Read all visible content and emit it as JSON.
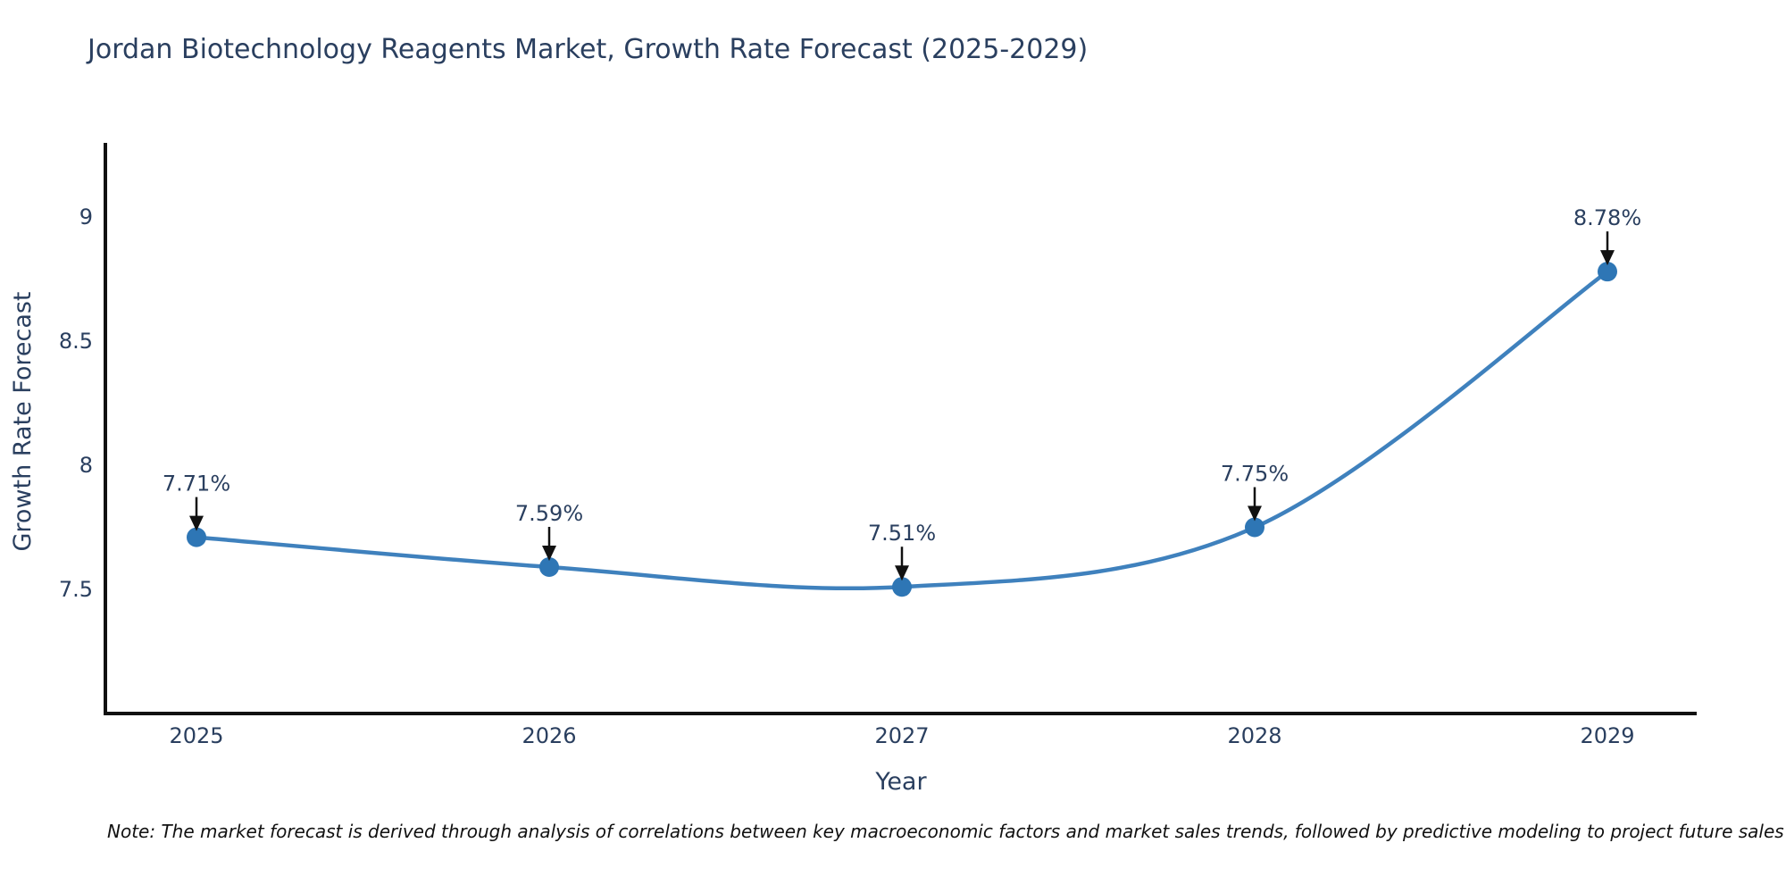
{
  "title": "Jordan Biotechnology Reagents Market, Growth Rate Forecast (2025-2029)",
  "note": "Note: The market forecast is derived through analysis of correlations between key macroeconomic factors and market sales trends, followed by predictive modeling to project future sales",
  "chart_data": {
    "type": "line",
    "title": "Jordan Biotechnology Reagents Market, Growth Rate Forecast (2025-2029)",
    "xlabel": "Year",
    "ylabel": "Growth Rate Forecast",
    "x": [
      2025,
      2026,
      2027,
      2028,
      2029
    ],
    "values": [
      7.71,
      7.59,
      7.51,
      7.75,
      8.78
    ],
    "point_labels": [
      "7.71%",
      "7.59%",
      "7.51%",
      "7.75%",
      "8.78%"
    ],
    "xtick_labels": [
      "2025",
      "2026",
      "2027",
      "2028",
      "2029"
    ],
    "ytick_values": [
      7.5,
      8,
      8.5,
      9
    ],
    "ytick_labels": [
      "7.5",
      "8",
      "8.5",
      "9"
    ],
    "ylim": [
      7.0,
      9.3
    ],
    "xlim": [
      2024.74,
      2029.25
    ],
    "grid": false,
    "legend_position": "none",
    "line_shape": "spline",
    "marker": "circle",
    "annotations": "value labels with down arrows above each point",
    "colors": {
      "line": "#3f81bd",
      "marker": "#2e76b5",
      "axis": "#111111",
      "arrow": "#111111",
      "text": "#2a3f5f",
      "background": "#ffffff"
    }
  }
}
